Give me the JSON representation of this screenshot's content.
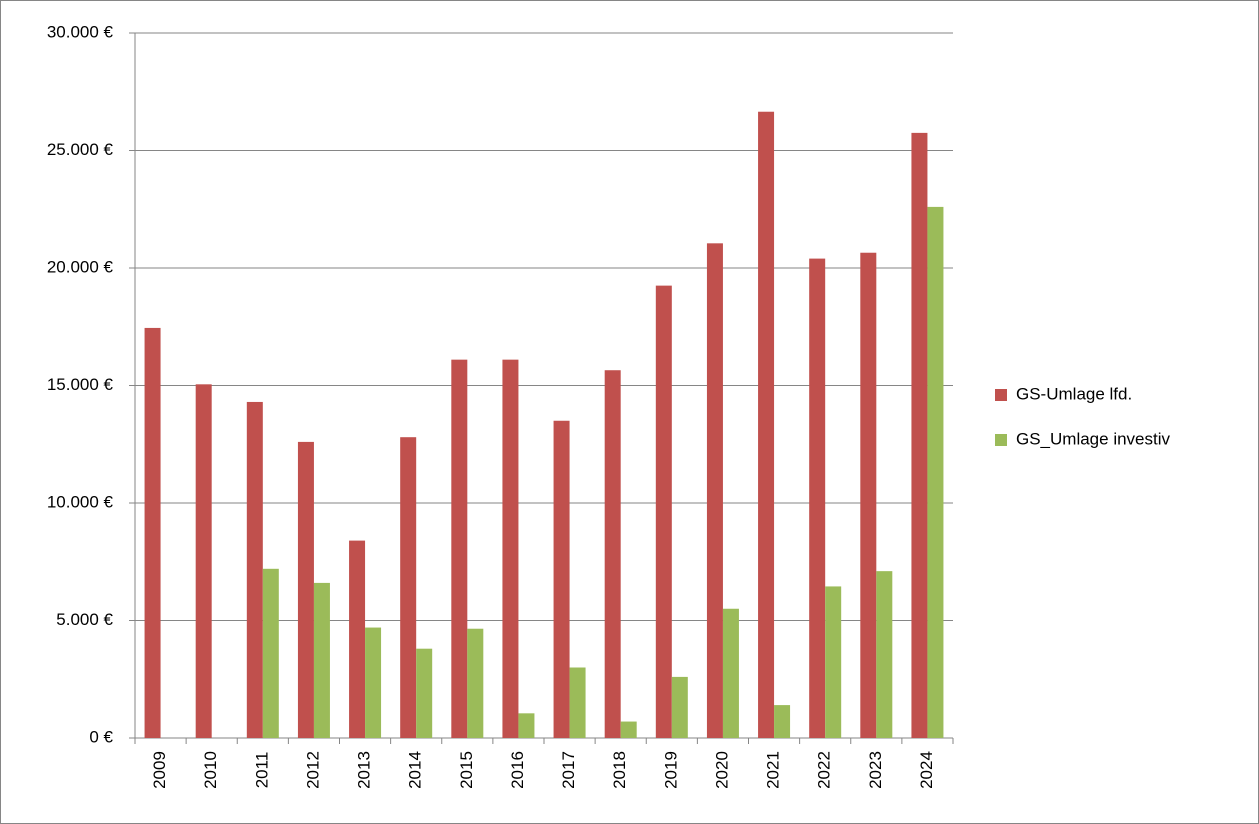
{
  "chart_data": {
    "type": "bar",
    "categories": [
      "2009",
      "2010",
      "2011",
      "2012",
      "2013",
      "2014",
      "2015",
      "2016",
      "2017",
      "2018",
      "2019",
      "2020",
      "2021",
      "2022",
      "2023",
      "2024"
    ],
    "series": [
      {
        "name": "GS-Umlage lfd.",
        "color": "#c0504d",
        "values": [
          17450,
          15050,
          14300,
          12600,
          8400,
          12800,
          16100,
          16100,
          13500,
          15650,
          19250,
          21050,
          26650,
          20400,
          20650,
          25750
        ]
      },
      {
        "name": "GS_Umlage investiv",
        "color": "#9bbb59",
        "values": [
          0,
          0,
          7200,
          6600,
          4700,
          3800,
          4650,
          1050,
          3000,
          700,
          2600,
          5500,
          1400,
          6450,
          7100,
          22600
        ]
      }
    ],
    "ylim": [
      0,
      30000
    ],
    "yticks": [
      {
        "value": 0,
        "label": "0 €"
      },
      {
        "value": 5000,
        "label": "5.000 €"
      },
      {
        "value": 10000,
        "label": "10.000 €"
      },
      {
        "value": 15000,
        "label": "15.000 €"
      },
      {
        "value": 20000,
        "label": "20.000 €"
      },
      {
        "value": 25000,
        "label": "25.000 €"
      },
      {
        "value": 30000,
        "label": "30.000 €"
      }
    ],
    "grid": true,
    "legend": "right"
  }
}
